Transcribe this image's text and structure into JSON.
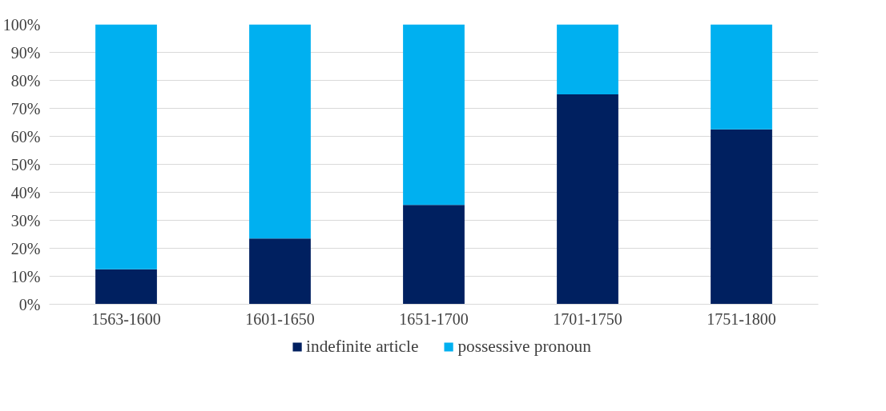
{
  "chart_data": {
    "type": "bar",
    "stacked": true,
    "categories": [
      "1563-1600",
      "1601-1650",
      "1651-1700",
      "1701-1750",
      "1751-1800"
    ],
    "series": [
      {
        "name": "indefinite article",
        "color": "#002060",
        "values": [
          12.5,
          23.5,
          35.5,
          75,
          62.5
        ]
      },
      {
        "name": "possessive pronoun",
        "color": "#00b0f0",
        "values": [
          87.5,
          76.5,
          64.5,
          25,
          37.5
        ]
      }
    ],
    "ylim": [
      0,
      100
    ],
    "yticks": [
      {
        "value": 0,
        "label": "0%"
      },
      {
        "value": 10,
        "label": "10%"
      },
      {
        "value": 20,
        "label": "20%"
      },
      {
        "value": 30,
        "label": "30%"
      },
      {
        "value": 40,
        "label": "40%"
      },
      {
        "value": 50,
        "label": "50%"
      },
      {
        "value": 60,
        "label": "60%"
      },
      {
        "value": 70,
        "label": "70%"
      },
      {
        "value": 80,
        "label": "80%"
      },
      {
        "value": 90,
        "label": "90%"
      },
      {
        "value": 100,
        "label": "100%"
      }
    ],
    "grid": "y",
    "legend": "bottom"
  }
}
